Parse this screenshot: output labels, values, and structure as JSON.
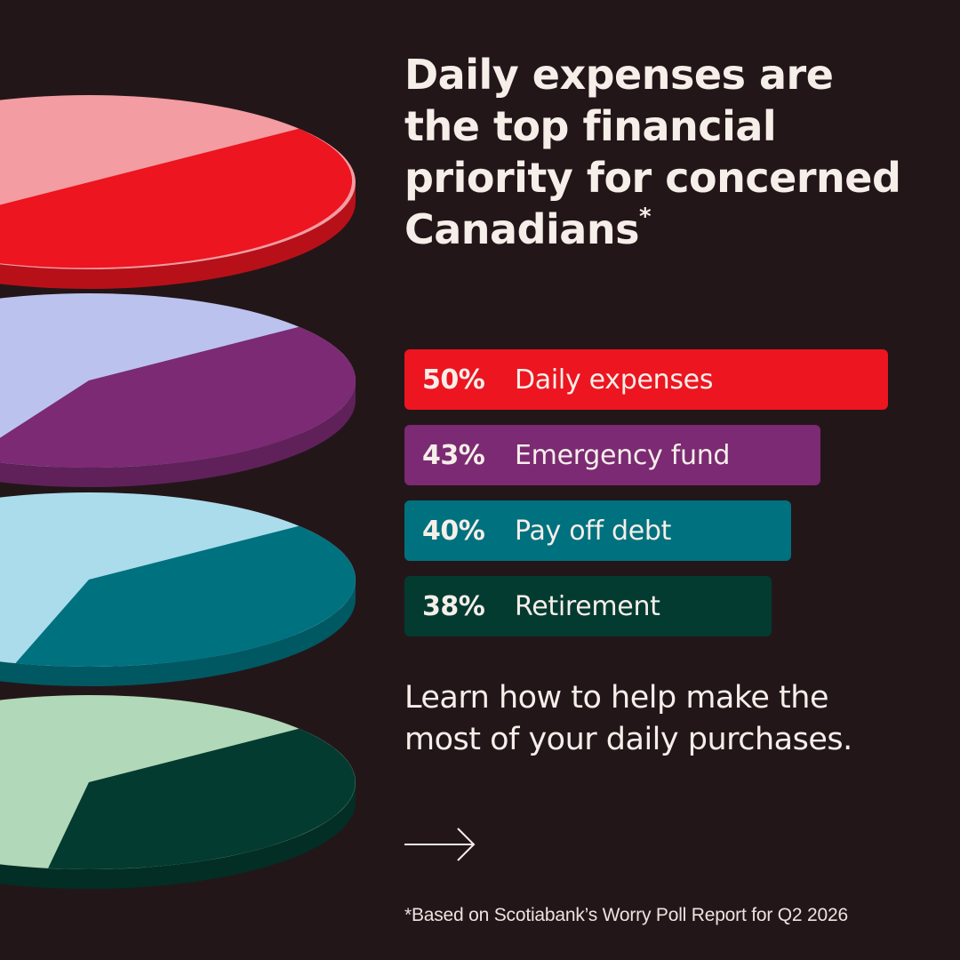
{
  "title": "Daily expenses are the top financial priority for concerned Canadians",
  "title_footnote_marker": "*",
  "chart_data": {
    "type": "bar",
    "orientation": "horizontal",
    "categories": [
      "Daily expenses",
      "Emergency fund",
      "Pay off debt",
      "Retirement"
    ],
    "values": [
      50,
      43,
      40,
      38
    ],
    "value_labels": [
      "50%",
      "43%",
      "40%",
      "38%"
    ],
    "unit": "%",
    "colors": [
      "#ec1520",
      "#7b2a73",
      "#00717e",
      "#033b30"
    ],
    "pie_light_colors": [
      "#f39ca2",
      "#bcc2ee",
      "#abdcec",
      "#b1d8b8"
    ]
  },
  "cta_text": "Learn how to help make the most of your daily purchases.",
  "arrow_icon": "right-arrow-icon",
  "footnote": "*Based on Scotiabank’s Worry Poll Report for Q2 2026"
}
